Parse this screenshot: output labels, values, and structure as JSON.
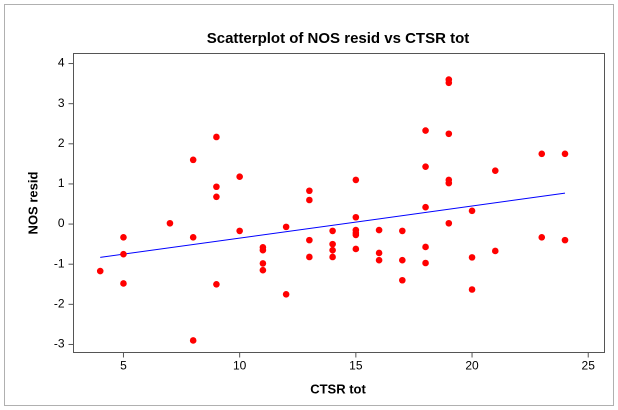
{
  "chart_data": {
    "type": "scatter",
    "title": "Scatterplot of NOS resid vs CTSR tot",
    "x_label": "CTSR tot",
    "y_label": "NOS resid",
    "x": [
      4,
      5,
      5,
      5,
      7,
      8,
      8,
      8,
      9,
      9,
      9,
      9,
      10,
      10,
      11,
      11,
      11,
      11,
      12,
      12,
      13,
      13,
      13,
      13,
      14,
      14,
      14,
      14,
      15,
      15,
      15,
      15,
      15,
      15,
      16,
      16,
      16,
      17,
      17,
      17,
      18,
      18,
      18,
      18,
      18,
      19,
      19,
      19,
      19,
      19,
      19,
      20,
      20,
      20,
      21,
      21,
      23,
      23,
      24,
      24
    ],
    "values": [
      -1.17,
      -0.33,
      -0.75,
      -1.48,
      0.02,
      1.6,
      -0.33,
      -2.9,
      2.17,
      0.93,
      0.68,
      -1.5,
      1.18,
      -0.17,
      -0.58,
      -0.65,
      -0.98,
      -1.15,
      -0.07,
      -1.75,
      0.83,
      0.6,
      -0.4,
      -0.82,
      -0.17,
      -0.5,
      -0.65,
      -0.82,
      1.1,
      0.17,
      -0.15,
      -0.22,
      -0.27,
      -0.62,
      -0.15,
      -0.72,
      -0.9,
      -0.17,
      -0.9,
      -1.4,
      2.33,
      1.43,
      0.42,
      -0.57,
      -0.97,
      3.6,
      3.52,
      2.25,
      1.1,
      1.02,
      0.02,
      0.33,
      -0.83,
      -1.63,
      1.33,
      -0.67,
      1.75,
      -0.33,
      1.75,
      -0.4
    ],
    "color": "#ff0000",
    "fit_line": {
      "x": [
        4,
        24
      ],
      "y": [
        -0.83,
        0.77
      ],
      "color": "#0000ff"
    },
    "xlim": [
      2.85,
      25.7
    ],
    "xticks": [
      5,
      10,
      15,
      20,
      25
    ],
    "ylim": [
      -3.2,
      4.25
    ],
    "yticks": [
      -3,
      -2,
      -1,
      0,
      1,
      2,
      3,
      4
    ],
    "grid": false
  }
}
